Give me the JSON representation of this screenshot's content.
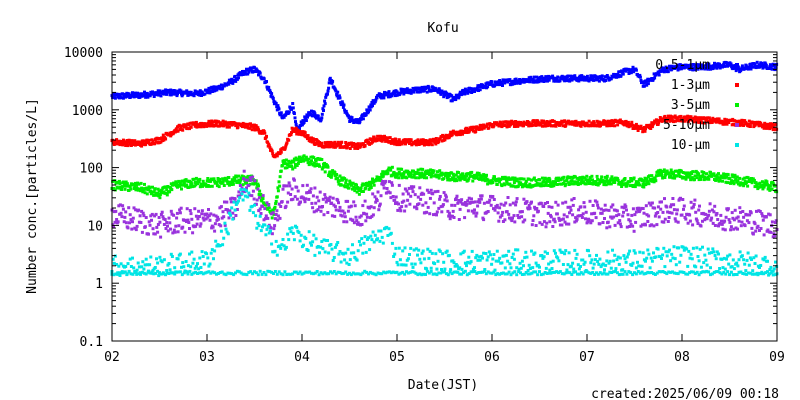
{
  "chart_data": {
    "type": "scatter",
    "title": "Kofu",
    "xlabel": "Date(JST)",
    "ylabel": "Number conc.[particles/L]",
    "yscale": "log",
    "ylim": [
      0.1,
      10000
    ],
    "xlim": [
      2,
      9
    ],
    "x_tick_labels": [
      "02",
      "03",
      "04",
      "05",
      "06",
      "07",
      "08",
      "09"
    ],
    "y_tick_labels": [
      "0.1",
      "1",
      "10",
      "100",
      "1000",
      "10000"
    ],
    "y_tick_values": [
      0.1,
      1,
      10,
      100,
      1000,
      10000
    ],
    "grid": false,
    "legend_position": "top-right",
    "footer": "created:2025/06/09 00:18",
    "series": [
      {
        "name": "0.5-1µm",
        "color": "#0000ff",
        "x": [
          2.0,
          2.3,
          2.6,
          2.9,
          3.1,
          3.25,
          3.4,
          3.5,
          3.6,
          3.7,
          3.8,
          3.9,
          3.95,
          4.0,
          4.1,
          4.2,
          4.3,
          4.4,
          4.5,
          4.6,
          4.8,
          5.0,
          5.2,
          5.4,
          5.6,
          5.7,
          6.0,
          6.3,
          6.6,
          6.9,
          7.2,
          7.4,
          7.5,
          7.6,
          7.8,
          8.0,
          8.2,
          8.5,
          8.6,
          8.8,
          9.0
        ],
        "y": [
          1700,
          1800,
          2000,
          1900,
          2300,
          3000,
          4500,
          5000,
          3500,
          1500,
          700,
          1200,
          400,
          600,
          900,
          700,
          3500,
          1500,
          700,
          600,
          1700,
          2000,
          2200,
          2300,
          1500,
          2000,
          2800,
          3200,
          3500,
          3500,
          3500,
          4500,
          5000,
          2700,
          5000,
          5500,
          5500,
          6000,
          5000,
          6000,
          5500
        ]
      },
      {
        "name": "1-3µm",
        "color": "#ff0000",
        "x": [
          2.0,
          2.3,
          2.5,
          2.7,
          2.9,
          3.1,
          3.3,
          3.5,
          3.6,
          3.7,
          3.8,
          3.9,
          4.0,
          4.1,
          4.2,
          4.4,
          4.6,
          4.8,
          5.0,
          5.2,
          5.4,
          5.6,
          5.8,
          6.0,
          6.3,
          6.6,
          6.9,
          7.2,
          7.4,
          7.6,
          7.8,
          8.0,
          8.3,
          8.6,
          9.0
        ],
        "y": [
          280,
          260,
          300,
          480,
          550,
          580,
          550,
          500,
          400,
          150,
          200,
          450,
          400,
          300,
          250,
          250,
          230,
          330,
          280,
          270,
          280,
          400,
          450,
          550,
          580,
          580,
          580,
          580,
          600,
          450,
          700,
          700,
          650,
          600,
          500
        ]
      },
      {
        "name": "3-5µm",
        "color": "#00ee00",
        "x": [
          2.0,
          2.3,
          2.5,
          2.7,
          2.9,
          3.1,
          3.3,
          3.5,
          3.6,
          3.7,
          3.8,
          3.9,
          4.0,
          4.1,
          4.2,
          4.3,
          4.4,
          4.6,
          4.8,
          4.9,
          5.0,
          5.2,
          5.4,
          5.6,
          5.8,
          6.0,
          6.3,
          6.6,
          6.9,
          7.2,
          7.4,
          7.6,
          7.8,
          8.0,
          8.3,
          8.6,
          9.0
        ],
        "y": [
          50,
          45,
          35,
          50,
          55,
          55,
          60,
          60,
          25,
          15,
          120,
          110,
          150,
          130,
          120,
          80,
          60,
          40,
          60,
          90,
          80,
          80,
          75,
          70,
          70,
          60,
          55,
          55,
          60,
          60,
          55,
          55,
          80,
          75,
          70,
          60,
          45
        ]
      },
      {
        "name": "5-10µm",
        "color": "#9933dd",
        "x": [
          2.0,
          2.3,
          2.5,
          2.7,
          2.9,
          3.1,
          3.3,
          3.4,
          3.5,
          3.6,
          3.7,
          3.8,
          3.9,
          4.0,
          4.1,
          4.2,
          4.4,
          4.6,
          4.8,
          4.9,
          5.0,
          5.2,
          5.4,
          5.6,
          5.8,
          6.0,
          6.3,
          6.6,
          6.9,
          7.2,
          7.5,
          7.8,
          8.0,
          8.3,
          8.6,
          9.0
        ],
        "y": [
          15,
          12,
          10,
          12,
          12,
          13,
          20,
          60,
          40,
          20,
          10,
          30,
          40,
          35,
          30,
          25,
          20,
          15,
          25,
          60,
          30,
          28,
          25,
          20,
          22,
          20,
          18,
          15,
          18,
          15,
          13,
          18,
          18,
          15,
          13,
          10
        ]
      },
      {
        "name": "10-µm",
        "color": "#00e5e5",
        "x": [
          2.0,
          2.5,
          3.0,
          3.2,
          3.3,
          3.4,
          3.5,
          3.6,
          3.7,
          3.8,
          3.9,
          4.0,
          4.2,
          4.5,
          4.9,
          5.0,
          5.5,
          6.0,
          6.5,
          7.0,
          7.5,
          8.0,
          8.5,
          9.0
        ],
        "y": [
          2,
          2,
          2.5,
          8,
          25,
          35,
          15,
          8,
          5,
          4,
          8,
          6,
          4,
          3,
          8,
          3,
          2.5,
          2.5,
          2.5,
          2.5,
          2.5,
          3,
          2.5,
          2
        ]
      },
      {
        "name": "",
        "color": "#00e5e5",
        "x": [
          2.0,
          2.5,
          3.0,
          3.5,
          4.0,
          4.5,
          5.0,
          5.5,
          6.0,
          6.5,
          7.0,
          7.5,
          8.0,
          8.5,
          9.0
        ],
        "y": [
          1.5,
          1.5,
          1.5,
          1.5,
          1.5,
          1.5,
          1.5,
          1.5,
          1.5,
          1.5,
          1.5,
          1.5,
          1.5,
          1.5,
          1.5
        ]
      }
    ]
  }
}
